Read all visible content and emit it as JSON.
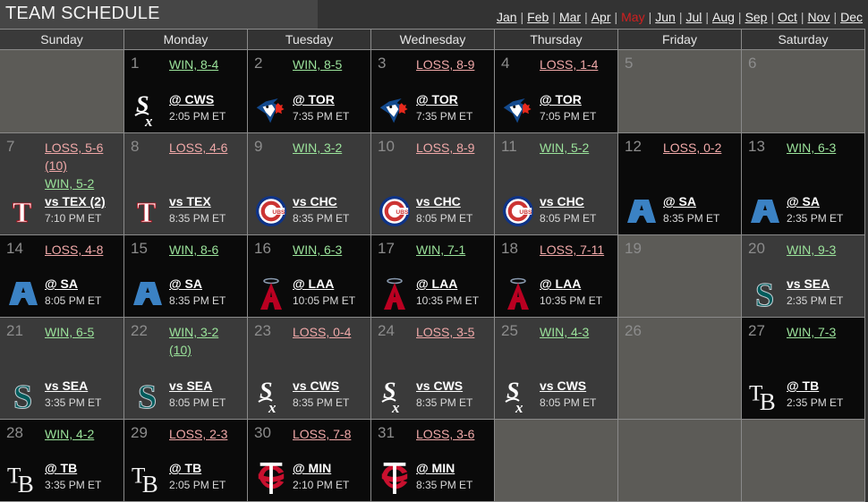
{
  "header": {
    "title": "TEAM SCHEDULE",
    "months": [
      {
        "label": "Jan",
        "current": false
      },
      {
        "label": "Feb",
        "current": false
      },
      {
        "label": "Mar",
        "current": false
      },
      {
        "label": "Apr",
        "current": false
      },
      {
        "label": "May",
        "current": true
      },
      {
        "label": "Jun",
        "current": false
      },
      {
        "label": "Jul",
        "current": false
      },
      {
        "label": "Aug",
        "current": false
      },
      {
        "label": "Sep",
        "current": false
      },
      {
        "label": "Oct",
        "current": false
      },
      {
        "label": "Nov",
        "current": false
      },
      {
        "label": "Dec",
        "current": false
      }
    ],
    "separator": "|"
  },
  "colors": {
    "win": "#9be39b",
    "loss": "#f0a8a8",
    "current_month": "#d21f1f",
    "home_cell": "#3a3a3a",
    "away_cell": "#0a0a0a",
    "off_cell": "#5c5b57"
  },
  "days_of_week": [
    "Sunday",
    "Monday",
    "Tuesday",
    "Wednesday",
    "Thursday",
    "Friday",
    "Saturday"
  ],
  "weeks": [
    [
      {
        "day": null,
        "type": "blank"
      },
      {
        "day": "1",
        "type": "away",
        "results": [
          {
            "label": "WIN, 8-4",
            "kind": "win"
          }
        ],
        "opponent": "@ CWS",
        "time": "2:05 PM ET",
        "logo": "white-sox-logo"
      },
      {
        "day": "2",
        "type": "away",
        "results": [
          {
            "label": "WIN, 8-5",
            "kind": "win"
          }
        ],
        "opponent": "@ TOR",
        "time": "7:35 PM ET",
        "logo": "blue-jays-logo"
      },
      {
        "day": "3",
        "type": "away",
        "results": [
          {
            "label": "LOSS, 8-9",
            "kind": "loss"
          }
        ],
        "opponent": "@ TOR",
        "time": "7:35 PM ET",
        "logo": "blue-jays-logo"
      },
      {
        "day": "4",
        "type": "away",
        "results": [
          {
            "label": "LOSS, 1-4",
            "kind": "loss"
          }
        ],
        "opponent": "@ TOR",
        "time": "7:05 PM ET",
        "logo": "blue-jays-logo"
      },
      {
        "day": "5",
        "type": "off"
      },
      {
        "day": "6",
        "type": "off"
      }
    ],
    [
      {
        "day": "7",
        "type": "home",
        "results": [
          {
            "label": "LOSS, 5-6 (10)",
            "kind": "loss"
          },
          {
            "label": "WIN, 5-2",
            "kind": "win"
          }
        ],
        "opponent": "vs TEX (2)",
        "time": "7:10 PM ET",
        "logo": "rangers-logo"
      },
      {
        "day": "8",
        "type": "home",
        "results": [
          {
            "label": "LOSS, 4-6",
            "kind": "loss"
          }
        ],
        "opponent": "vs TEX",
        "time": "8:35 PM ET",
        "logo": "rangers-logo"
      },
      {
        "day": "9",
        "type": "home",
        "results": [
          {
            "label": "WIN, 3-2",
            "kind": "win"
          }
        ],
        "opponent": "vs CHC",
        "time": "8:35 PM ET",
        "logo": "cubs-logo"
      },
      {
        "day": "10",
        "type": "home",
        "results": [
          {
            "label": "LOSS, 8-9",
            "kind": "loss"
          }
        ],
        "opponent": "vs CHC",
        "time": "8:05 PM ET",
        "logo": "cubs-logo"
      },
      {
        "day": "11",
        "type": "home",
        "results": [
          {
            "label": "WIN, 5-2",
            "kind": "win"
          }
        ],
        "opponent": "vs CHC",
        "time": "8:05 PM ET",
        "logo": "cubs-logo"
      },
      {
        "day": "12",
        "type": "away",
        "results": [
          {
            "label": "LOSS, 0-2",
            "kind": "loss"
          }
        ],
        "opponent": "@ SA",
        "time": "8:35 PM ET",
        "logo": "athletics-logo"
      },
      {
        "day": "13",
        "type": "away",
        "results": [
          {
            "label": "WIN, 6-3",
            "kind": "win"
          }
        ],
        "opponent": "@ SA",
        "time": "2:35 PM ET",
        "logo": "athletics-logo"
      }
    ],
    [
      {
        "day": "14",
        "type": "away",
        "results": [
          {
            "label": "LOSS, 4-8",
            "kind": "loss"
          }
        ],
        "opponent": "@ SA",
        "time": "8:05 PM ET",
        "logo": "athletics-logo"
      },
      {
        "day": "15",
        "type": "away",
        "results": [
          {
            "label": "WIN, 8-6",
            "kind": "win"
          }
        ],
        "opponent": "@ SA",
        "time": "8:35 PM ET",
        "logo": "athletics-logo"
      },
      {
        "day": "16",
        "type": "away",
        "results": [
          {
            "label": "WIN, 6-3",
            "kind": "win"
          }
        ],
        "opponent": "@ LAA",
        "time": "10:05 PM ET",
        "logo": "angels-logo"
      },
      {
        "day": "17",
        "type": "away",
        "results": [
          {
            "label": "WIN, 7-1",
            "kind": "win"
          }
        ],
        "opponent": "@ LAA",
        "time": "10:35 PM ET",
        "logo": "angels-logo"
      },
      {
        "day": "18",
        "type": "away",
        "results": [
          {
            "label": "LOSS, 7-11",
            "kind": "loss"
          }
        ],
        "opponent": "@ LAA",
        "time": "10:35 PM ET",
        "logo": "angels-logo"
      },
      {
        "day": "19",
        "type": "off"
      },
      {
        "day": "20",
        "type": "home",
        "results": [
          {
            "label": "WIN, 9-3",
            "kind": "win"
          }
        ],
        "opponent": "vs SEA",
        "time": "2:35 PM ET",
        "logo": "mariners-logo"
      }
    ],
    [
      {
        "day": "21",
        "type": "home",
        "results": [
          {
            "label": "WIN, 6-5",
            "kind": "win"
          }
        ],
        "opponent": "vs SEA",
        "time": "3:35 PM ET",
        "logo": "mariners-logo"
      },
      {
        "day": "22",
        "type": "home",
        "results": [
          {
            "label": "WIN, 3-2 (10)",
            "kind": "win"
          }
        ],
        "opponent": "vs SEA",
        "time": "8:05 PM ET",
        "logo": "mariners-logo"
      },
      {
        "day": "23",
        "type": "home",
        "results": [
          {
            "label": "LOSS, 0-4",
            "kind": "loss"
          }
        ],
        "opponent": "vs CWS",
        "time": "8:35 PM ET",
        "logo": "white-sox-logo"
      },
      {
        "day": "24",
        "type": "home",
        "results": [
          {
            "label": "LOSS, 3-5",
            "kind": "loss"
          }
        ],
        "opponent": "vs CWS",
        "time": "8:35 PM ET",
        "logo": "white-sox-logo"
      },
      {
        "day": "25",
        "type": "home",
        "results": [
          {
            "label": "WIN, 4-3",
            "kind": "win"
          }
        ],
        "opponent": "vs CWS",
        "time": "8:05 PM ET",
        "logo": "white-sox-logo"
      },
      {
        "day": "26",
        "type": "off"
      },
      {
        "day": "27",
        "type": "away",
        "results": [
          {
            "label": "WIN, 7-3",
            "kind": "win"
          }
        ],
        "opponent": "@ TB",
        "time": "2:35 PM ET",
        "logo": "rays-logo"
      }
    ],
    [
      {
        "day": "28",
        "type": "away",
        "results": [
          {
            "label": "WIN, 4-2",
            "kind": "win"
          }
        ],
        "opponent": "@ TB",
        "time": "3:35 PM ET",
        "logo": "rays-logo"
      },
      {
        "day": "29",
        "type": "away",
        "results": [
          {
            "label": "LOSS, 2-3",
            "kind": "loss"
          }
        ],
        "opponent": "@ TB",
        "time": "2:05 PM ET",
        "logo": "rays-logo"
      },
      {
        "day": "30",
        "type": "away",
        "results": [
          {
            "label": "LOSS, 7-8",
            "kind": "loss"
          }
        ],
        "opponent": "@ MIN",
        "time": "2:10 PM ET",
        "logo": "twins-logo"
      },
      {
        "day": "31",
        "type": "away",
        "results": [
          {
            "label": "LOSS, 3-6",
            "kind": "loss"
          }
        ],
        "opponent": "@ MIN",
        "time": "8:35 PM ET",
        "logo": "twins-logo"
      },
      {
        "day": null,
        "type": "blank"
      },
      {
        "day": null,
        "type": "blank"
      },
      {
        "day": null,
        "type": "blank"
      }
    ]
  ]
}
